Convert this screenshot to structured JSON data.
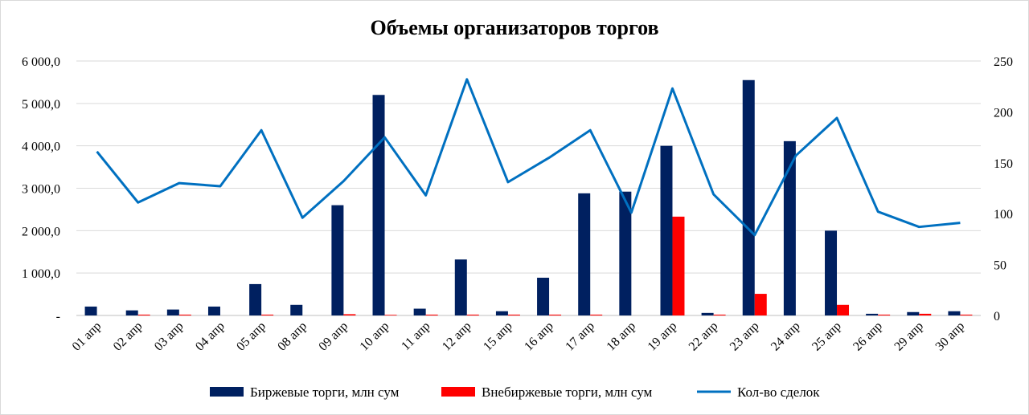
{
  "chart_data": {
    "type": "bar",
    "title": "Объемы организаторов  торгов",
    "categories": [
      "01 апр",
      "02 апр",
      "03 апр",
      "04 апр",
      "05 апр",
      "08 апр",
      "09 апр",
      "10 апр",
      "11 апр",
      "12 апр",
      "15 апр",
      "16 апр",
      "17 апр",
      "18 апр",
      "19 апр",
      "22 апр",
      "23 апр",
      "24 апр",
      "25 апр",
      "26 апр",
      "29 апр",
      "30 апр"
    ],
    "series": [
      {
        "name": "Биржевые торги, млн сум",
        "type": "bar",
        "axis": "left",
        "color": "#002060",
        "values": [
          210,
          120,
          140,
          210,
          740,
          250,
          2600,
          5200,
          160,
          1320,
          100,
          890,
          2880,
          2920,
          4000,
          60,
          5550,
          4110,
          2000,
          40,
          80,
          100
        ]
      },
      {
        "name": "Внебиржевые торги, млн сум",
        "type": "bar",
        "axis": "left",
        "color": "#ff0000",
        "values": [
          0,
          20,
          20,
          0,
          20,
          0,
          30,
          15,
          20,
          20,
          20,
          20,
          20,
          0,
          2330,
          20,
          510,
          0,
          250,
          20,
          40,
          20
        ]
      },
      {
        "name": "Кол-во сделок",
        "type": "line",
        "axis": "right",
        "color": "#0070c0",
        "values": [
          161,
          111,
          130,
          127,
          182,
          96,
          132,
          175,
          118,
          232,
          131,
          155,
          182,
          101,
          223,
          119,
          79,
          157,
          194,
          102,
          87,
          91
        ]
      }
    ],
    "y_left": {
      "min": 0,
      "max": 6000,
      "ticks": [
        "-",
        "1 000,0",
        "2 000,0",
        "3 000,0",
        "4 000,0",
        "5 000,0",
        "6 000,0"
      ]
    },
    "y_right": {
      "min": 0,
      "max": 250,
      "ticks": [
        "0",
        "50",
        "100",
        "150",
        "200",
        "250"
      ]
    },
    "grid": true,
    "legend": "bottom"
  }
}
